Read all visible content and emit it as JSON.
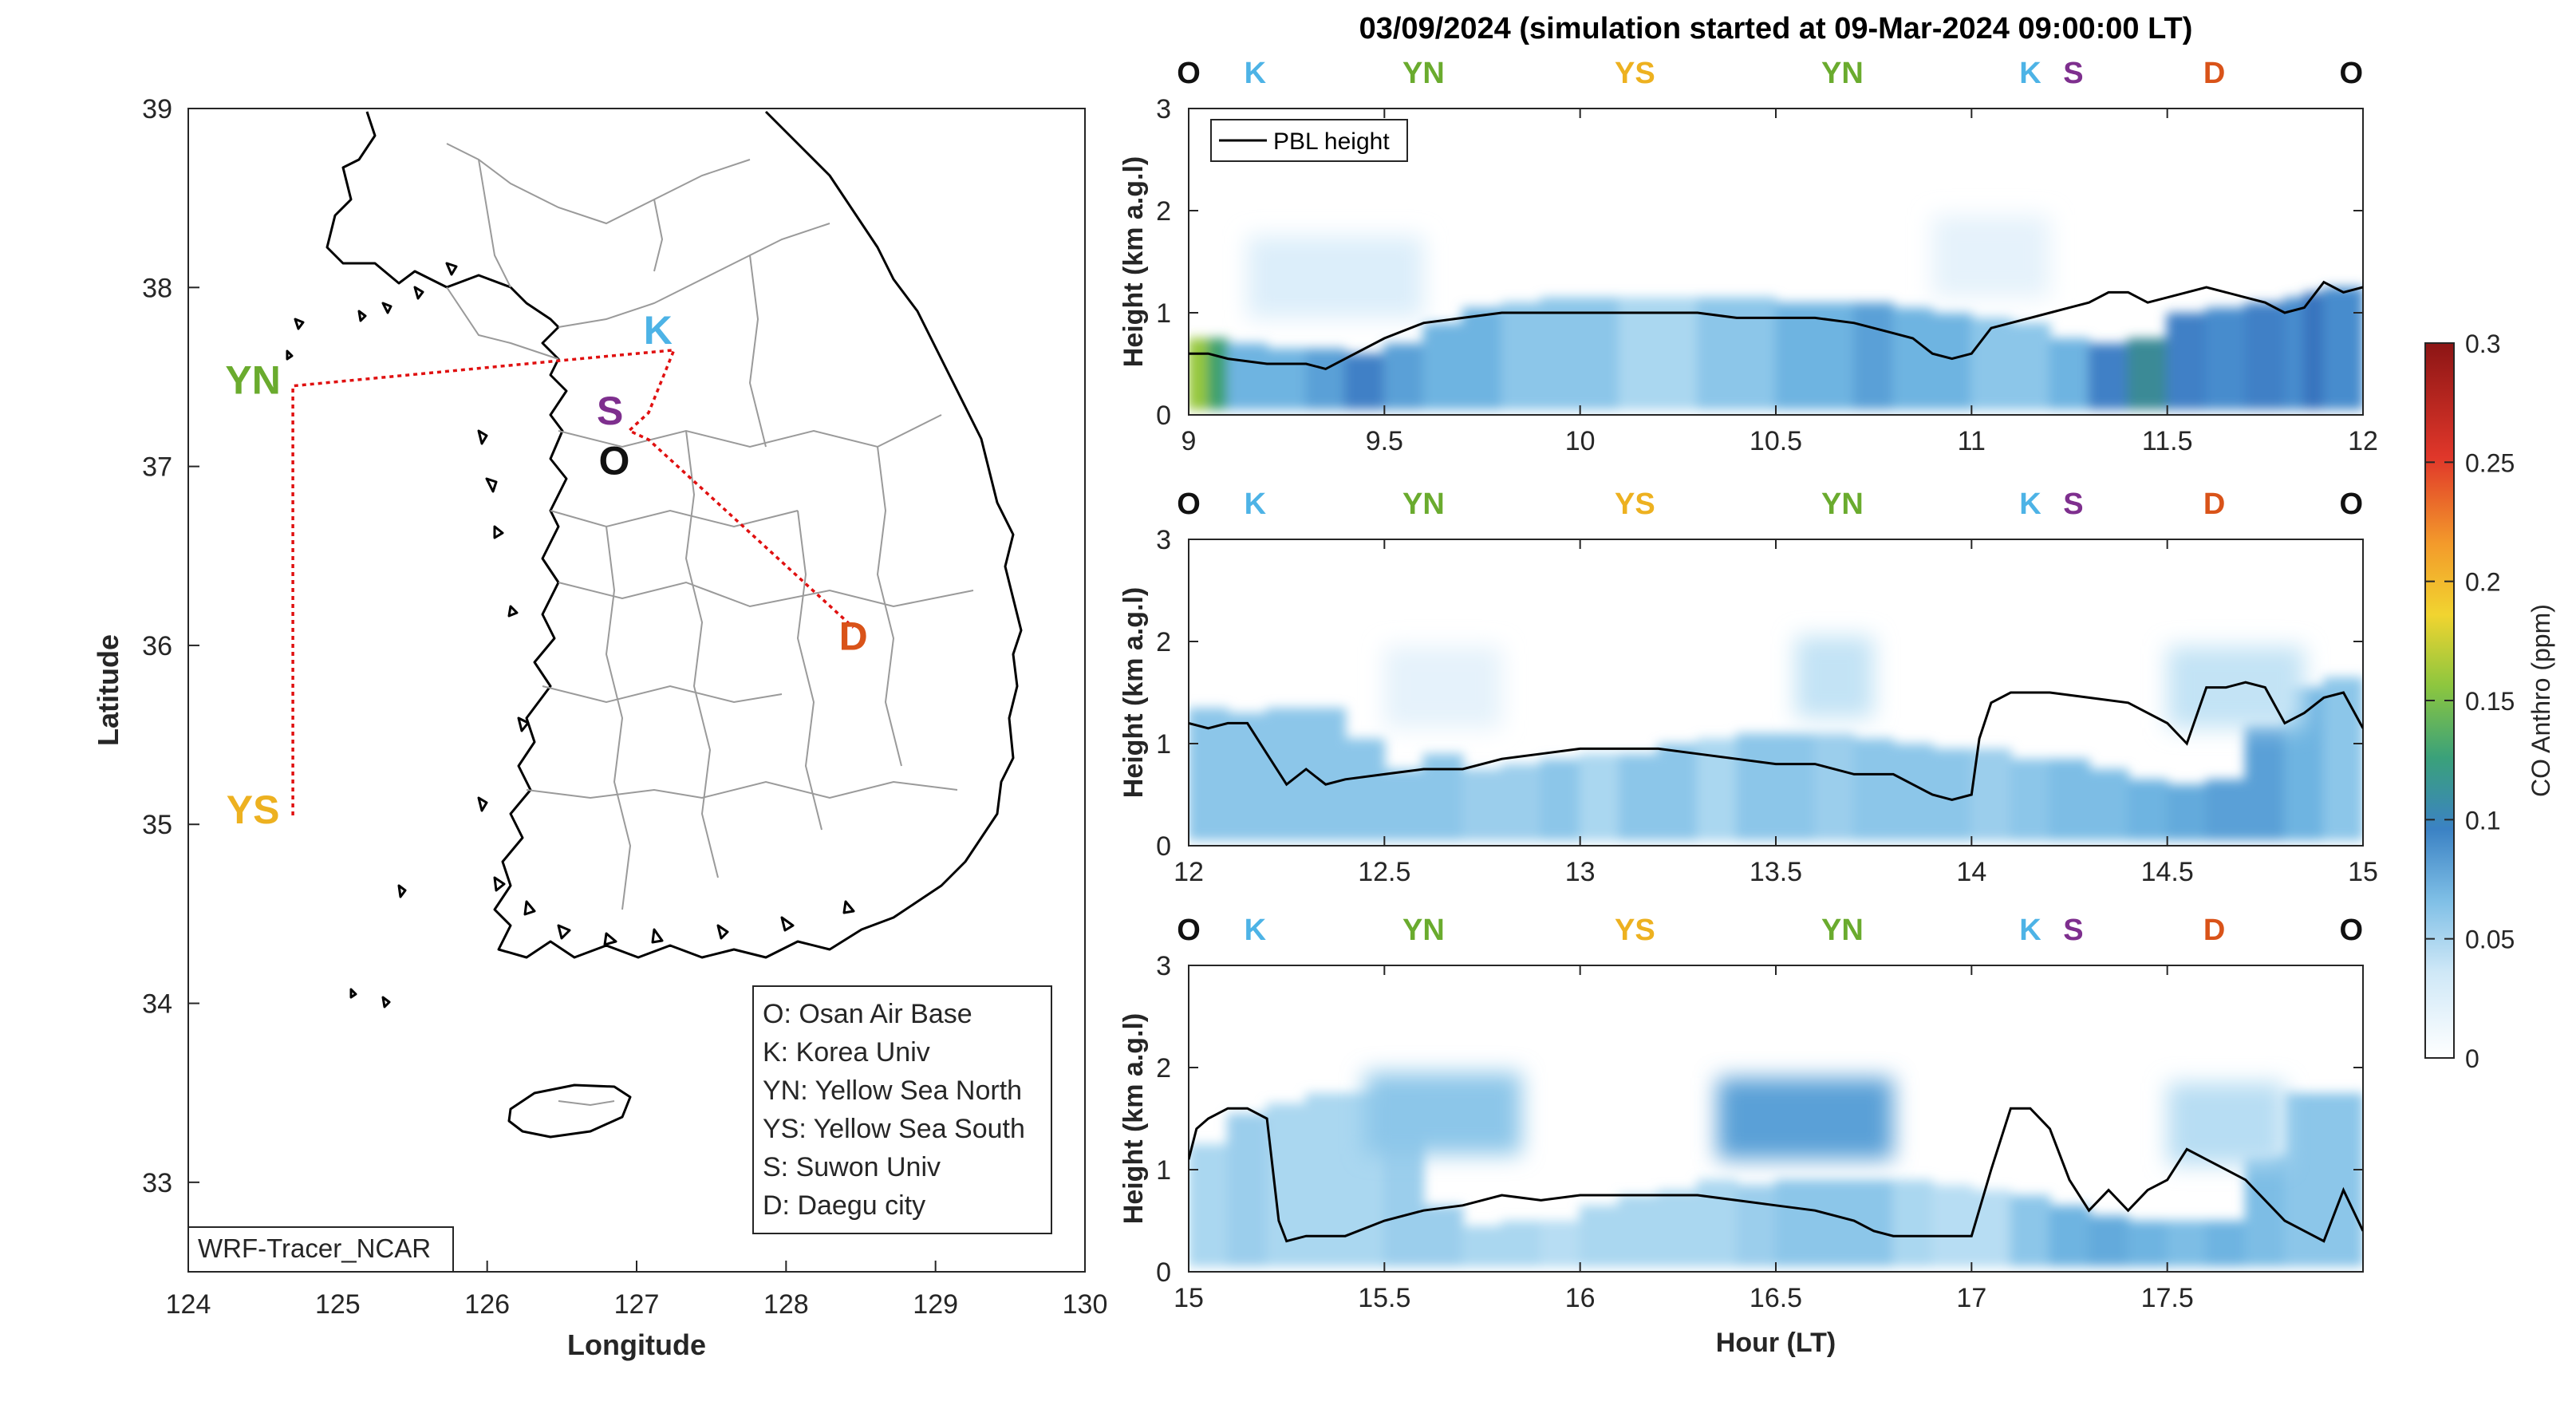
{
  "colors": {
    "O": "#111111",
    "K": "#4db3e6",
    "YN": "#6aab2e",
    "YS": "#edb120",
    "S": "#7e2f8e",
    "D": "#d95319",
    "route": "#e01010"
  },
  "map": {
    "source_label": "WRF-Tracer_NCAR",
    "legend_lines": [
      "O: Osan Air Base",
      "K: Korea Univ",
      "YN: Yellow Sea North",
      "YS: Yellow Sea South",
      "S: Suwon Univ",
      "D: Daegu city"
    ]
  },
  "chart_data": [
    {
      "type": "line",
      "title": "",
      "xlabel": "Longitude",
      "ylabel": "Latitude",
      "xlim": [
        124,
        130
      ],
      "ylim": [
        32.5,
        39
      ],
      "x_ticks": [
        "124",
        "125",
        "126",
        "127",
        "128",
        "129",
        "130"
      ],
      "y_ticks": [
        "33",
        "34",
        "35",
        "36",
        "37",
        "38",
        "39"
      ],
      "grid": false,
      "series": [
        {
          "x": [
            124.7,
            124.7,
            126.6,
            127.25,
            127.08,
            126.95,
            127.08,
            128.45
          ],
          "y": [
            35.05,
            37.45,
            37.6,
            37.65,
            37.3,
            37.2,
            37.15,
            36.1
          ]
        }
      ],
      "stations": [
        {
          "label": "YN",
          "lon": 124.7,
          "lat": 37.45
        },
        {
          "label": "YS",
          "lon": 124.7,
          "lat": 35.05
        },
        {
          "label": "K",
          "lon": 127.25,
          "lat": 37.65
        },
        {
          "label": "S",
          "lon": 126.95,
          "lat": 37.28
        },
        {
          "label": "O",
          "lon": 127.0,
          "lat": 37.08
        },
        {
          "label": "D",
          "lon": 128.45,
          "lat": 36.1
        }
      ]
    },
    {
      "type": "heatmap",
      "title": "03/09/2024 (simulation started at 09-Mar-2024 09:00:00 LT)",
      "xlabel": "",
      "ylabel": "Height (km a.g.l)",
      "xlim": [
        9,
        12
      ],
      "ylim": [
        0,
        3
      ],
      "x_ticks": [
        "9",
        "9.5",
        "10",
        "10.5",
        "11",
        "11.5",
        "12"
      ],
      "y_ticks": [
        "0",
        "1",
        "2",
        "3"
      ],
      "legend": "top-left",
      "series_name": "PBL height",
      "station_labels": [
        {
          "label": "O",
          "x": 9.0
        },
        {
          "label": "K",
          "x": 9.17
        },
        {
          "label": "YN",
          "x": 9.6
        },
        {
          "label": "YS",
          "x": 10.14
        },
        {
          "label": "YN",
          "x": 10.67
        },
        {
          "label": "K",
          "x": 11.15
        },
        {
          "label": "S",
          "x": 11.26
        },
        {
          "label": "D",
          "x": 11.62
        },
        {
          "label": "O",
          "x": 11.97
        }
      ],
      "pbl_x": [
        9.0,
        9.05,
        9.1,
        9.2,
        9.3,
        9.35,
        9.4,
        9.5,
        9.6,
        9.7,
        9.8,
        9.9,
        10.0,
        10.1,
        10.2,
        10.3,
        10.4,
        10.5,
        10.6,
        10.7,
        10.75,
        10.8,
        10.85,
        10.9,
        10.95,
        11.0,
        11.05,
        11.1,
        11.15,
        11.2,
        11.25,
        11.3,
        11.35,
        11.4,
        11.45,
        11.5,
        11.55,
        11.6,
        11.65,
        11.7,
        11.75,
        11.8,
        11.85,
        11.9,
        11.95,
        12.0
      ],
      "pbl_y": [
        0.6,
        0.6,
        0.55,
        0.5,
        0.5,
        0.45,
        0.55,
        0.75,
        0.9,
        0.95,
        1.0,
        1.0,
        1.0,
        1.0,
        1.0,
        1.0,
        0.95,
        0.95,
        0.95,
        0.9,
        0.85,
        0.8,
        0.75,
        0.6,
        0.55,
        0.6,
        0.85,
        0.9,
        0.95,
        1.0,
        1.05,
        1.1,
        1.2,
        1.2,
        1.1,
        1.15,
        1.2,
        1.25,
        1.2,
        1.15,
        1.1,
        1.0,
        1.05,
        1.3,
        1.2,
        1.25
      ],
      "co_x": [
        9.0,
        9.05,
        9.1,
        9.2,
        9.3,
        9.4,
        9.5,
        9.6,
        9.7,
        9.8,
        9.9,
        10.0,
        10.1,
        10.2,
        10.3,
        10.4,
        10.5,
        10.6,
        10.7,
        10.8,
        10.9,
        11.0,
        11.1,
        11.2,
        11.3,
        11.4,
        11.5,
        11.6,
        11.7,
        11.8,
        11.85,
        11.9,
        12.0
      ],
      "co_ppm": [
        0.15,
        0.12,
        0.06,
        0.06,
        0.07,
        0.09,
        0.07,
        0.06,
        0.06,
        0.05,
        0.05,
        0.05,
        0.04,
        0.04,
        0.05,
        0.05,
        0.06,
        0.06,
        0.07,
        0.06,
        0.06,
        0.05,
        0.05,
        0.06,
        0.09,
        0.11,
        0.09,
        0.08,
        0.09,
        0.08,
        0.1,
        0.08,
        0.07
      ]
    },
    {
      "type": "heatmap",
      "title": "",
      "xlabel": "",
      "ylabel": "Height (km a.g.l)",
      "xlim": [
        12,
        15
      ],
      "ylim": [
        0,
        3
      ],
      "x_ticks": [
        "12",
        "12.5",
        "13",
        "13.5",
        "14",
        "14.5",
        "15"
      ],
      "y_ticks": [
        "0",
        "1",
        "2",
        "3"
      ],
      "station_labels": [
        {
          "label": "O",
          "x": 12.0
        },
        {
          "label": "K",
          "x": 12.17
        },
        {
          "label": "YN",
          "x": 12.6
        },
        {
          "label": "YS",
          "x": 13.14
        },
        {
          "label": "YN",
          "x": 13.67
        },
        {
          "label": "K",
          "x": 14.15
        },
        {
          "label": "S",
          "x": 14.26
        },
        {
          "label": "D",
          "x": 14.62
        },
        {
          "label": "O",
          "x": 14.97
        }
      ],
      "pbl_x": [
        12.0,
        12.05,
        12.1,
        12.15,
        12.2,
        12.25,
        12.3,
        12.35,
        12.4,
        12.5,
        12.6,
        12.7,
        12.8,
        12.9,
        13.0,
        13.1,
        13.2,
        13.3,
        13.4,
        13.5,
        13.6,
        13.7,
        13.8,
        13.85,
        13.9,
        13.95,
        14.0,
        14.02,
        14.05,
        14.1,
        14.15,
        14.2,
        14.3,
        14.4,
        14.5,
        14.55,
        14.6,
        14.65,
        14.7,
        14.75,
        14.8,
        14.85,
        14.9,
        14.95,
        15.0
      ],
      "pbl_y": [
        1.2,
        1.15,
        1.2,
        1.2,
        0.9,
        0.6,
        0.75,
        0.6,
        0.65,
        0.7,
        0.75,
        0.75,
        0.85,
        0.9,
        0.95,
        0.95,
        0.95,
        0.9,
        0.85,
        0.8,
        0.8,
        0.7,
        0.7,
        0.6,
        0.5,
        0.45,
        0.5,
        1.05,
        1.4,
        1.5,
        1.5,
        1.5,
        1.45,
        1.4,
        1.2,
        1.0,
        1.55,
        1.55,
        1.6,
        1.55,
        1.2,
        1.3,
        1.45,
        1.5,
        1.15
      ],
      "co_x": [
        12.0,
        12.1,
        12.2,
        12.3,
        12.4,
        12.5,
        12.6,
        12.7,
        12.8,
        12.9,
        13.0,
        13.1,
        13.2,
        13.3,
        13.4,
        13.5,
        13.6,
        13.7,
        13.8,
        13.9,
        14.0,
        14.1,
        14.2,
        14.3,
        14.4,
        14.5,
        14.6,
        14.7,
        14.8,
        14.9,
        15.0
      ],
      "co_ppm": [
        0.05,
        0.05,
        0.05,
        0.05,
        0.05,
        0.05,
        0.05,
        0.045,
        0.045,
        0.05,
        0.04,
        0.05,
        0.05,
        0.04,
        0.05,
        0.05,
        0.045,
        0.05,
        0.05,
        0.05,
        0.045,
        0.05,
        0.055,
        0.055,
        0.06,
        0.065,
        0.07,
        0.07,
        0.06,
        0.05,
        0.05
      ]
    },
    {
      "type": "heatmap",
      "title": "",
      "xlabel": "Hour (LT)",
      "ylabel": "Height (km a.g.l)",
      "xlim": [
        15,
        18
      ],
      "ylim": [
        0,
        3
      ],
      "x_ticks": [
        "15",
        "15.5",
        "16",
        "16.5",
        "17",
        "17.5"
      ],
      "y_ticks": [
        "0",
        "1",
        "2",
        "3"
      ],
      "station_labels": [
        {
          "label": "O",
          "x": 15.0
        },
        {
          "label": "K",
          "x": 15.17
        },
        {
          "label": "YN",
          "x": 15.6
        },
        {
          "label": "YS",
          "x": 16.14
        },
        {
          "label": "YN",
          "x": 16.67
        },
        {
          "label": "K",
          "x": 17.15
        },
        {
          "label": "S",
          "x": 17.26
        },
        {
          "label": "D",
          "x": 17.62
        },
        {
          "label": "O",
          "x": 17.97
        }
      ],
      "pbl_x": [
        15.0,
        15.02,
        15.05,
        15.1,
        15.15,
        15.2,
        15.23,
        15.25,
        15.3,
        15.4,
        15.5,
        15.6,
        15.7,
        15.8,
        15.9,
        16.0,
        16.1,
        16.2,
        16.3,
        16.4,
        16.5,
        16.6,
        16.7,
        16.75,
        16.8,
        16.9,
        17.0,
        17.05,
        17.1,
        17.15,
        17.2,
        17.25,
        17.3,
        17.35,
        17.4,
        17.45,
        17.5,
        17.55,
        17.6,
        17.7,
        17.8,
        17.85,
        17.9,
        17.95,
        18.0
      ],
      "pbl_y": [
        1.1,
        1.4,
        1.5,
        1.6,
        1.6,
        1.5,
        0.5,
        0.3,
        0.35,
        0.35,
        0.5,
        0.6,
        0.65,
        0.75,
        0.7,
        0.75,
        0.75,
        0.75,
        0.75,
        0.7,
        0.65,
        0.6,
        0.5,
        0.4,
        0.35,
        0.35,
        0.35,
        1.0,
        1.6,
        1.6,
        1.4,
        0.9,
        0.6,
        0.8,
        0.6,
        0.8,
        0.9,
        1.2,
        1.1,
        0.9,
        0.5,
        0.4,
        0.3,
        0.8,
        0.4
      ],
      "co_x": [
        15.0,
        15.1,
        15.2,
        15.3,
        15.4,
        15.5,
        15.6,
        15.7,
        15.8,
        15.9,
        16.0,
        16.1,
        16.2,
        16.3,
        16.4,
        16.5,
        16.6,
        16.7,
        16.8,
        16.9,
        17.0,
        17.1,
        17.2,
        17.3,
        17.4,
        17.5,
        17.6,
        17.7,
        17.8,
        17.9,
        18.0
      ],
      "co_ppm": [
        0.04,
        0.045,
        0.04,
        0.04,
        0.04,
        0.045,
        0.045,
        0.04,
        0.04,
        0.035,
        0.04,
        0.04,
        0.04,
        0.04,
        0.045,
        0.05,
        0.05,
        0.05,
        0.04,
        0.035,
        0.035,
        0.05,
        0.06,
        0.065,
        0.06,
        0.055,
        0.06,
        0.055,
        0.05,
        0.05,
        0.045
      ]
    }
  ],
  "colorbar": {
    "label": "CO Anthro (ppm)",
    "min": 0,
    "max": 0.3,
    "ticks": [
      "0",
      "0.05",
      "0.1",
      "0.15",
      "0.2",
      "0.25",
      "0.3"
    ]
  }
}
